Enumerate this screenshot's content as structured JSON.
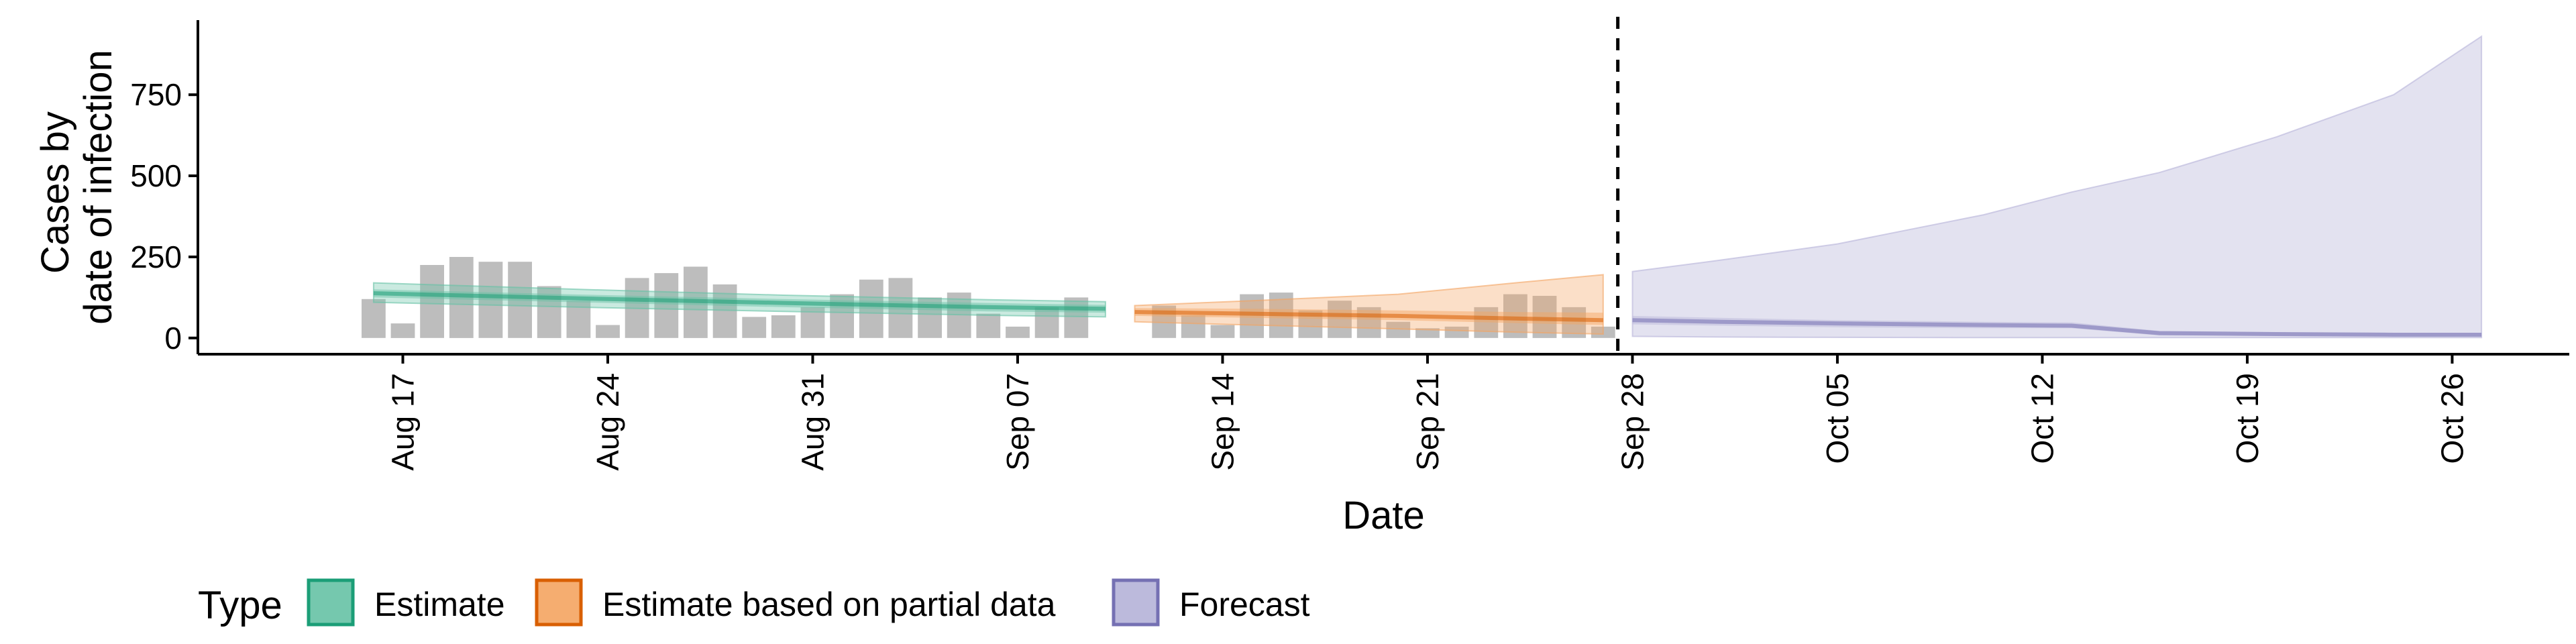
{
  "chart_data": {
    "type": "area",
    "title": "",
    "xlabel": "Date",
    "ylabel_lines": [
      "Cases by",
      "date of infection"
    ],
    "x_ticks": [
      "Aug 17",
      "Aug 24",
      "Aug 31",
      "Sep 07",
      "Sep 14",
      "Sep 21",
      "Sep 28",
      "Oct 05",
      "Oct 12",
      "Oct 19",
      "Oct 26"
    ],
    "x_tick_dates": [
      "2020-08-17",
      "2020-08-24",
      "2020-08-31",
      "2020-09-07",
      "2020-09-14",
      "2020-09-21",
      "2020-09-28",
      "2020-10-05",
      "2020-10-12",
      "2020-10-19",
      "2020-10-26"
    ],
    "y_ticks": [
      "0",
      "250",
      "500",
      "750"
    ],
    "y_tick_values": [
      0,
      250,
      500,
      750
    ],
    "xlim": [
      "2020-08-10",
      "2020-10-30"
    ],
    "ylim": [
      -50,
      980
    ],
    "grid": false,
    "forecast_start": "2020-09-27",
    "observed_cases": {
      "dates": [
        "2020-08-16",
        "2020-08-17",
        "2020-08-18",
        "2020-08-19",
        "2020-08-20",
        "2020-08-21",
        "2020-08-22",
        "2020-08-23",
        "2020-08-24",
        "2020-08-25",
        "2020-08-26",
        "2020-08-27",
        "2020-08-28",
        "2020-08-29",
        "2020-08-30",
        "2020-08-31",
        "2020-09-01",
        "2020-09-02",
        "2020-09-03",
        "2020-09-04",
        "2020-09-05",
        "2020-09-06",
        "2020-09-07",
        "2020-09-08",
        "2020-09-09",
        "2020-09-10",
        "2020-09-11",
        "2020-09-12",
        "2020-09-13",
        "2020-09-14",
        "2020-09-15",
        "2020-09-16",
        "2020-09-17",
        "2020-09-18",
        "2020-09-19",
        "2020-09-20",
        "2020-09-21",
        "2020-09-22",
        "2020-09-23",
        "2020-09-24",
        "2020-09-25",
        "2020-09-26",
        "2020-09-27"
      ],
      "values": [
        120,
        45,
        225,
        250,
        235,
        235,
        160,
        115,
        40,
        185,
        200,
        220,
        165,
        65,
        70,
        95,
        135,
        180,
        185,
        125,
        140,
        75,
        35,
        95,
        125,
        0,
        0,
        100,
        70,
        40,
        135,
        140,
        85,
        115,
        95,
        50,
        30,
        35,
        95,
        135,
        130,
        95,
        35
      ]
    },
    "series": [
      {
        "name": "Estimate",
        "color": "#1b9e77",
        "fill_color": "#66c2a5",
        "dates": [
          "2020-08-16",
          "2020-08-23",
          "2020-08-30",
          "2020-09-06",
          "2020-09-10"
        ],
        "median": [
          138,
          122,
          108,
          95,
          90
        ],
        "lower_inner": [
          125,
          110,
          95,
          82,
          78
        ],
        "upper_inner": [
          150,
          134,
          120,
          108,
          102
        ],
        "lower": [
          110,
          95,
          82,
          70,
          65
        ],
        "upper": [
          170,
          150,
          132,
          118,
          112
        ]
      },
      {
        "name": "Estimate based on partial data",
        "color": "#d95f02",
        "fill_color": "#f4a460",
        "dates": [
          "2020-09-11",
          "2020-09-15",
          "2020-09-20",
          "2020-09-24",
          "2020-09-27"
        ],
        "median": [
          80,
          75,
          68,
          60,
          55
        ],
        "lower_inner": [
          68,
          62,
          55,
          46,
          40
        ],
        "upper_inner": [
          92,
          90,
          85,
          80,
          78
        ],
        "lower": [
          50,
          40,
          28,
          18,
          12
        ],
        "upper": [
          100,
          115,
          135,
          170,
          195
        ]
      },
      {
        "name": "Forecast",
        "color": "#7570b3",
        "fill_color": "#b5b3d8",
        "dates": [
          "2020-09-28",
          "2020-10-01",
          "2020-10-05",
          "2020-10-10",
          "2020-10-13",
          "2020-10-16",
          "2020-10-20",
          "2020-10-24",
          "2020-10-27"
        ],
        "median": [
          55,
          50,
          45,
          40,
          38,
          15,
          12,
          10,
          10
        ],
        "lower_inner": [
          42,
          38,
          33,
          30,
          30,
          8,
          6,
          5,
          5
        ],
        "upper_inner": [
          68,
          62,
          55,
          50,
          48,
          22,
          18,
          16,
          16
        ],
        "lower": [
          5,
          3,
          2,
          1,
          1,
          1,
          1,
          1,
          1
        ],
        "upper": [
          205,
          240,
          290,
          380,
          450,
          510,
          620,
          750,
          930
        ]
      }
    ],
    "legend": {
      "title": "Type",
      "placement": "bottom-left",
      "entries": [
        "Estimate",
        "Estimate based on partial data",
        "Forecast"
      ]
    }
  }
}
